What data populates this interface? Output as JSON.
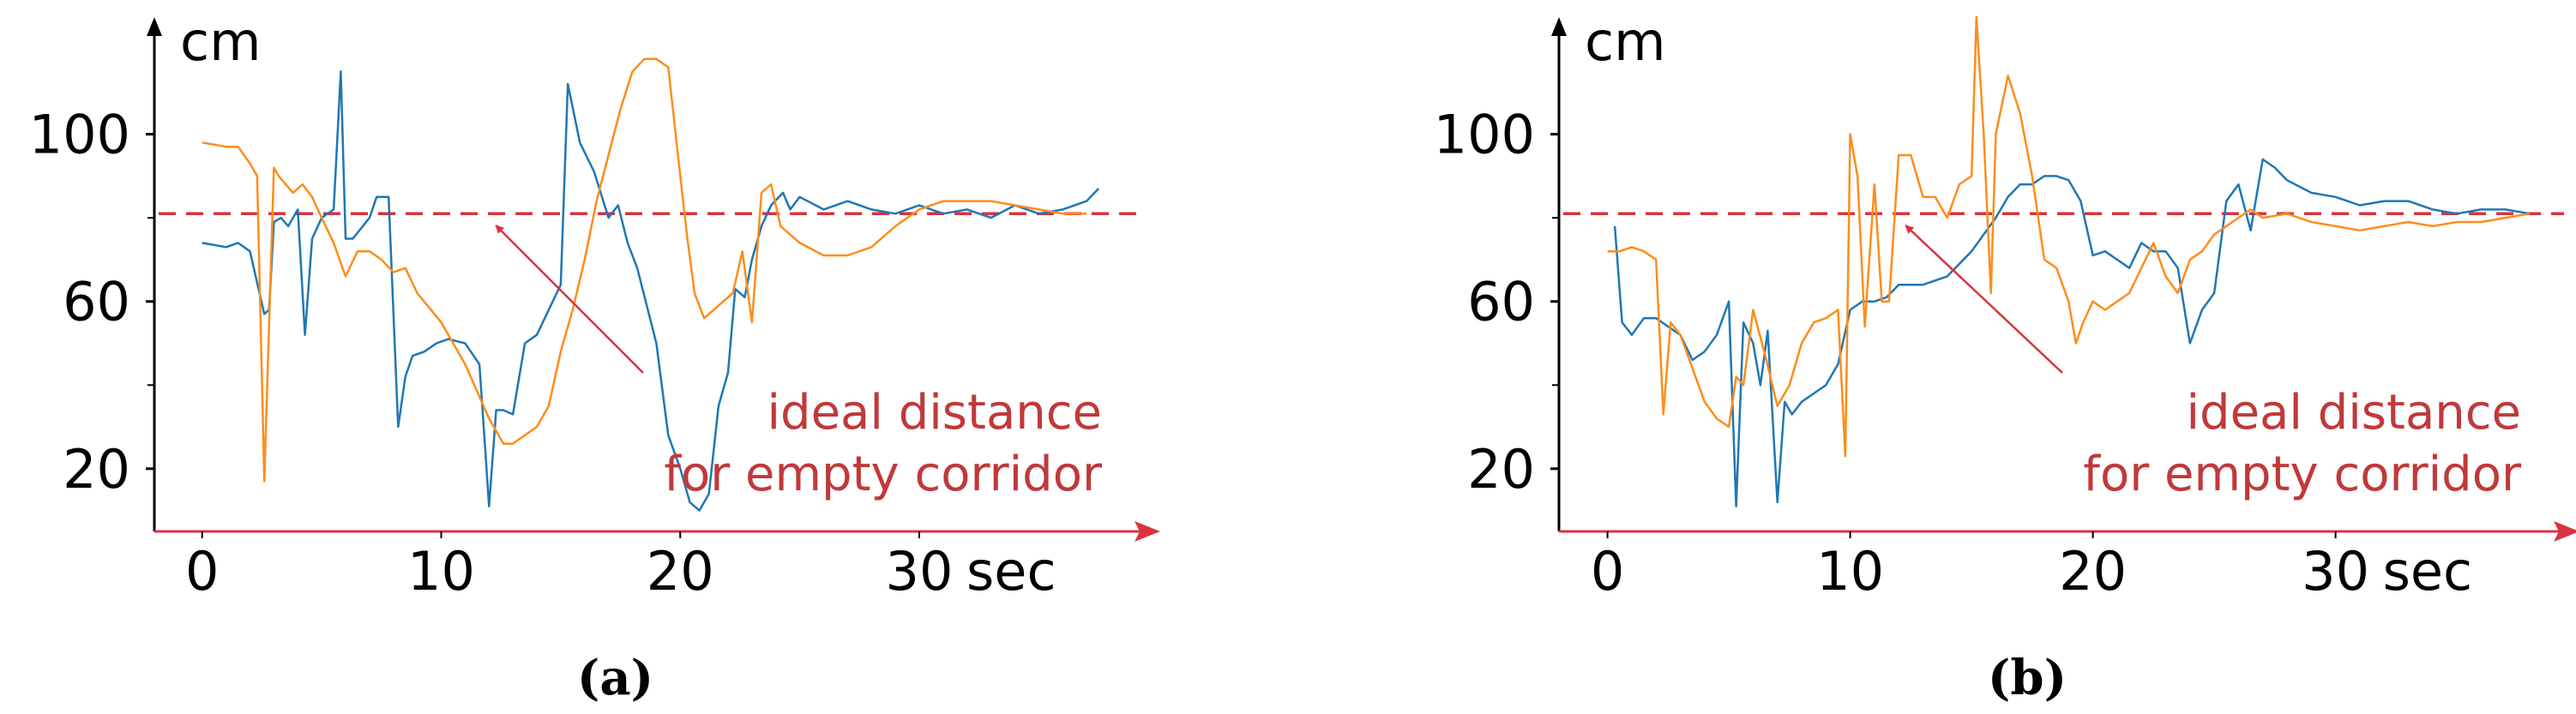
{
  "colors": {
    "axis": "#000000",
    "arrow": "#d9333f",
    "reference": "#d9333f",
    "annotation": "#c0393b",
    "series_blue": "#1f77b4",
    "series_orange": "#ff8c1a"
  },
  "chart_data": [
    {
      "type": "line",
      "caption": "(a)",
      "ylabel": "cm",
      "xlabel": "sec",
      "x_ticks": [
        "0",
        "10",
        "20",
        "30"
      ],
      "y_ticks": [
        "100",
        "60",
        "20"
      ],
      "xlim": [
        -2,
        38
      ],
      "ylim": [
        5,
        128
      ],
      "reference_line": {
        "y": 81,
        "label_lines": [
          "ideal distance",
          "for empty corridor"
        ],
        "arrow_to": [
          12,
          79
        ]
      },
      "series": [
        {
          "color": "#1f77b4",
          "x": [
            0,
            1,
            1.5,
            2,
            2.6,
            2.8,
            3,
            3.3,
            3.6,
            4,
            4.3,
            4.6,
            5,
            5.5,
            5.8,
            6,
            6.3,
            7,
            7.3,
            7.8,
            8.2,
            8.5,
            8.8,
            9.3,
            9.8,
            10.3,
            11,
            11.6,
            12,
            12.3,
            12.6,
            13,
            13.5,
            14,
            14.5,
            15,
            15.3,
            15.8,
            16.4,
            17,
            17.4,
            17.8,
            18.2,
            19,
            19.5,
            20,
            20.4,
            20.8,
            21.2,
            21.6,
            22,
            22.3,
            22.7,
            23,
            23.4,
            23.8,
            24.3,
            24.6,
            25,
            26,
            27,
            28,
            29,
            30,
            31,
            32,
            33,
            34,
            35,
            36,
            37,
            37.5
          ],
          "y": [
            74,
            73,
            74,
            72,
            57,
            58,
            79,
            80,
            78,
            82,
            52,
            75,
            80,
            82,
            115,
            75,
            75,
            80,
            85,
            85,
            30,
            42,
            47,
            48,
            50,
            51,
            50,
            45,
            11,
            34,
            34,
            33,
            50,
            52,
            58,
            64,
            112,
            98,
            91,
            80,
            83,
            74,
            68,
            50,
            28,
            20,
            12,
            10,
            14,
            35,
            43,
            63,
            61,
            70,
            78,
            83,
            86,
            82,
            85,
            82,
            84,
            82,
            81,
            83,
            81,
            82,
            80,
            83,
            81,
            82,
            84,
            87
          ]
        },
        {
          "color": "#ff8c1a",
          "x": [
            0,
            1,
            1.5,
            2,
            2.3,
            2.6,
            3,
            3.2,
            3.5,
            3.8,
            4.2,
            4.6,
            5,
            5.5,
            6,
            6.5,
            7,
            7.5,
            8,
            8.5,
            9,
            10,
            11,
            12,
            12.6,
            13,
            13.5,
            14,
            14.5,
            15,
            15.5,
            16,
            16.5,
            17,
            17.5,
            18,
            18.5,
            19,
            19.5,
            20,
            20.3,
            20.6,
            21,
            21.4,
            21.8,
            22.2,
            22.6,
            23,
            23.4,
            23.8,
            24.2,
            25,
            26,
            27,
            28,
            29,
            30,
            31,
            32,
            33,
            34,
            35,
            36,
            37
          ],
          "y": [
            98,
            97,
            97,
            93,
            90,
            17,
            92,
            90,
            88,
            86,
            88,
            85,
            80,
            74,
            66,
            72,
            72,
            70,
            67,
            68,
            62,
            55,
            45,
            32,
            26,
            26,
            28,
            30,
            35,
            48,
            58,
            70,
            84,
            95,
            106,
            115,
            118,
            118,
            116,
            90,
            75,
            62,
            56,
            58,
            60,
            62,
            72,
            55,
            86,
            88,
            78,
            74,
            71,
            71,
            73,
            78,
            82,
            84,
            84,
            84,
            83,
            82,
            81,
            81
          ]
        }
      ]
    },
    {
      "type": "line",
      "caption": "(b)",
      "ylabel": "cm",
      "xlabel": "sec",
      "x_ticks": [
        "0",
        "10",
        "20",
        "30"
      ],
      "y_ticks": [
        "100",
        "60",
        "20"
      ],
      "xlim": [
        -2,
        38
      ],
      "ylim": [
        5,
        128
      ],
      "reference_line": {
        "y": 81,
        "label_lines": [
          "ideal distance",
          "for empty corridor"
        ],
        "arrow_to": [
          12,
          79
        ]
      },
      "series": [
        {
          "color": "#1f77b4",
          "x": [
            0.3,
            0.6,
            1,
            1.5,
            2,
            2.5,
            3,
            3.5,
            4,
            4.5,
            5,
            5.3,
            5.6,
            6,
            6.3,
            6.6,
            7,
            7.3,
            7.6,
            8,
            8.5,
            9,
            9.5,
            10,
            10.5,
            11,
            11.5,
            12,
            13,
            14,
            15,
            16,
            16.5,
            17,
            17.5,
            18,
            18.5,
            19,
            19.5,
            20,
            20.5,
            21,
            21.5,
            22,
            22.5,
            23,
            23.5,
            24,
            24.5,
            25,
            25.5,
            26,
            26.5,
            27,
            27.5,
            28,
            29,
            30,
            31,
            32,
            33,
            34,
            35,
            36,
            37,
            38
          ],
          "y": [
            78,
            55,
            52,
            56,
            56,
            54,
            52,
            46,
            48,
            52,
            60,
            11,
            55,
            50,
            40,
            53,
            12,
            36,
            33,
            36,
            38,
            40,
            45,
            58,
            60,
            60,
            61,
            64,
            64,
            66,
            72,
            80,
            85,
            88,
            88,
            90,
            90,
            89,
            84,
            71,
            72,
            70,
            68,
            74,
            72,
            72,
            68,
            50,
            58,
            62,
            84,
            88,
            77,
            94,
            92,
            89,
            86,
            85,
            83,
            84,
            84,
            82,
            81,
            82,
            82,
            81
          ]
        },
        {
          "color": "#ff8c1a",
          "x": [
            0,
            0.5,
            1,
            1.5,
            2,
            2.3,
            2.6,
            3,
            3.5,
            4,
            4.5,
            5,
            5.3,
            5.6,
            6,
            6.5,
            7,
            7.5,
            8,
            8.5,
            9,
            9.5,
            9.8,
            10,
            10.3,
            10.6,
            11,
            11.3,
            11.6,
            12,
            12.5,
            13,
            13.5,
            14,
            14.5,
            15,
            15.2,
            15.5,
            15.8,
            16,
            16.5,
            17,
            17.5,
            18,
            18.5,
            19,
            19.3,
            19.6,
            20,
            20.5,
            21,
            21.5,
            22,
            22.5,
            23,
            23.5,
            24,
            24.5,
            25,
            25.5,
            26,
            26.5,
            27,
            28,
            29,
            30,
            31,
            32,
            33,
            34,
            35,
            36,
            37,
            38
          ],
          "y": [
            72,
            72,
            73,
            72,
            70,
            33,
            55,
            52,
            44,
            36,
            32,
            30,
            42,
            40,
            58,
            47,
            35,
            40,
            50,
            55,
            56,
            58,
            23,
            100,
            90,
            54,
            88,
            60,
            60,
            95,
            95,
            85,
            85,
            80,
            88,
            90,
            128,
            100,
            62,
            100,
            114,
            105,
            90,
            70,
            68,
            60,
            50,
            55,
            60,
            58,
            60,
            62,
            68,
            74,
            66,
            62,
            70,
            72,
            76,
            78,
            80,
            82,
            80,
            81,
            79,
            78,
            77,
            78,
            79,
            78,
            79,
            79,
            80,
            81
          ]
        }
      ]
    }
  ]
}
